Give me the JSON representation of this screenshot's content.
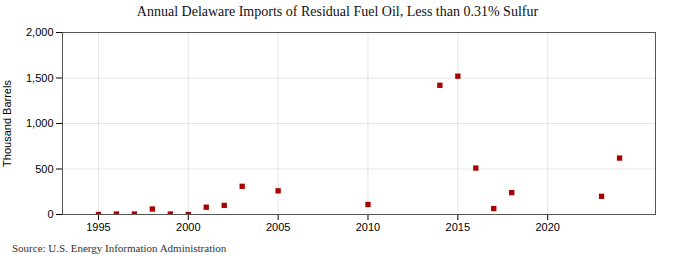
{
  "chart_data": {
    "type": "scatter",
    "title": "Annual Delaware Imports of Residual Fuel Oil, Less than 0.31% Sulfur",
    "ylabel": "Thousand Barrels",
    "source": "Source: U.S. Energy Information Administration",
    "x": [
      1995,
      1996,
      1997,
      1998,
      1999,
      2000,
      2001,
      2002,
      2003,
      2005,
      2010,
      2014,
      2015,
      2016,
      2017,
      2018,
      2023,
      2024
    ],
    "values": [
      0,
      5,
      5,
      60,
      5,
      0,
      80,
      100,
      310,
      260,
      110,
      1420,
      1520,
      510,
      65,
      240,
      200,
      620
    ],
    "color": "#aa0000",
    "marker": "square",
    "xlim": [
      1993,
      2026
    ],
    "ylim": [
      0,
      2000
    ],
    "xticks": [
      1995,
      2000,
      2005,
      2010,
      2015,
      2020
    ],
    "yticks": [
      0,
      500,
      {
        "value": 1000,
        "label": "1,000"
      },
      {
        "value": 1500,
        "label": "1,500"
      },
      {
        "value": 2000,
        "label": "2,000"
      }
    ],
    "grid": true
  }
}
